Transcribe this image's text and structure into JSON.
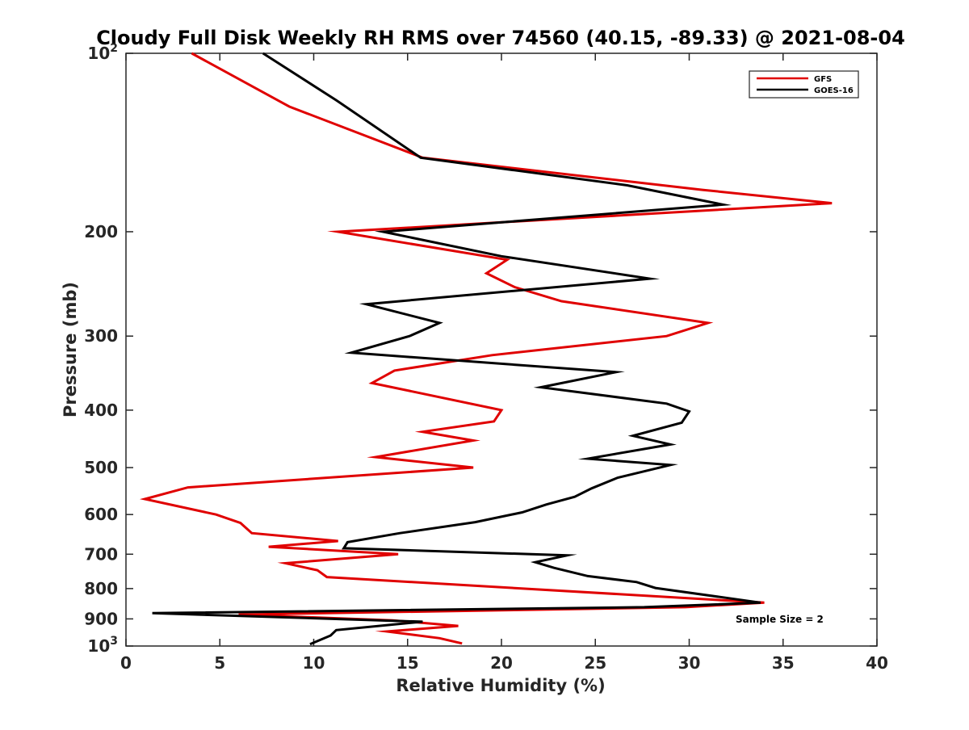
{
  "chart_data": {
    "type": "line",
    "title": "Cloudy Full Disk Weekly RH RMS over 74560 (40.15, -89.33) @ 2021-08-04",
    "xlabel": "Relative Humidity (%)",
    "ylabel": "Pressure (mb)",
    "xlim": [
      0,
      40
    ],
    "ylim": [
      100,
      1000
    ],
    "y_scale": "log",
    "y_reversed": true,
    "grid": false,
    "legend_position": "top-right",
    "x_ticks": [
      "0",
      "5",
      "10",
      "15",
      "20",
      "25",
      "30",
      "35",
      "40"
    ],
    "y_ticks": [
      {
        "value": 100,
        "label": "10",
        "exp": "2"
      },
      {
        "value": 200,
        "label": "200",
        "exp": ""
      },
      {
        "value": 300,
        "label": "300",
        "exp": ""
      },
      {
        "value": 400,
        "label": "400",
        "exp": ""
      },
      {
        "value": 500,
        "label": "500",
        "exp": ""
      },
      {
        "value": 600,
        "label": "600",
        "exp": ""
      },
      {
        "value": 700,
        "label": "700",
        "exp": ""
      },
      {
        "value": 800,
        "label": "800",
        "exp": ""
      },
      {
        "value": 900,
        "label": "900",
        "exp": ""
      },
      {
        "value": 1000,
        "label": "10",
        "exp": "3"
      }
    ],
    "annotation": "Sample Size = 2",
    "series": [
      {
        "name": "GFS",
        "color": "#e00000",
        "points": [
          [
            3.5,
            100
          ],
          [
            8.7,
            123
          ],
          [
            15.8,
            150
          ],
          [
            30.7,
            170
          ],
          [
            37.6,
            179
          ],
          [
            11.3,
            200
          ],
          [
            20.3,
            223
          ],
          [
            19.2,
            235
          ],
          [
            20.7,
            248
          ],
          [
            23.2,
            262
          ],
          [
            31.0,
            285
          ],
          [
            28.8,
            300
          ],
          [
            19.5,
            323
          ],
          [
            14.3,
            343
          ],
          [
            13.1,
            360
          ],
          [
            20.0,
            400
          ],
          [
            19.6,
            418
          ],
          [
            15.8,
            435
          ],
          [
            18.5,
            450
          ],
          [
            13.3,
            480
          ],
          [
            18.5,
            500
          ],
          [
            3.3,
            540
          ],
          [
            1.0,
            565
          ],
          [
            4.8,
            600
          ],
          [
            6.1,
            620
          ],
          [
            6.7,
            645
          ],
          [
            11.3,
            665
          ],
          [
            7.6,
            680
          ],
          [
            14.5,
            700
          ],
          [
            8.5,
            725
          ],
          [
            10.2,
            745
          ],
          [
            10.7,
            765
          ],
          [
            34.0,
            845
          ],
          [
            29.8,
            860
          ],
          [
            6.0,
            885
          ],
          [
            14.2,
            905
          ],
          [
            17.7,
            925
          ],
          [
            13.9,
            945
          ],
          [
            16.7,
            970
          ],
          [
            17.9,
            990
          ]
        ]
      },
      {
        "name": "GOES-16",
        "color": "#000000",
        "points": [
          [
            7.3,
            100
          ],
          [
            11.2,
            120
          ],
          [
            15.7,
            150
          ],
          [
            26.7,
            167
          ],
          [
            31.8,
            180
          ],
          [
            13.7,
            200
          ],
          [
            20.0,
            220
          ],
          [
            27.9,
            240
          ],
          [
            12.8,
            265
          ],
          [
            16.7,
            285
          ],
          [
            15.1,
            300
          ],
          [
            12.0,
            320
          ],
          [
            26.1,
            345
          ],
          [
            22.1,
            366
          ],
          [
            28.8,
            390
          ],
          [
            30.0,
            402
          ],
          [
            29.6,
            420
          ],
          [
            27.0,
            442
          ],
          [
            29.0,
            457
          ],
          [
            24.6,
            483
          ],
          [
            29.0,
            495
          ],
          [
            26.2,
            520
          ],
          [
            24.8,
            542
          ],
          [
            23.9,
            560
          ],
          [
            22.4,
            577
          ],
          [
            21.1,
            595
          ],
          [
            18.6,
            618
          ],
          [
            14.6,
            645
          ],
          [
            11.8,
            668
          ],
          [
            11.6,
            684
          ],
          [
            23.5,
            703
          ],
          [
            21.8,
            722
          ],
          [
            22.8,
            738
          ],
          [
            24.6,
            762
          ],
          [
            27.2,
            780
          ],
          [
            28.2,
            798
          ],
          [
            33.8,
            845
          ],
          [
            27.6,
            860
          ],
          [
            1.4,
            880
          ],
          [
            15.8,
            910
          ],
          [
            11.2,
            940
          ],
          [
            10.9,
            960
          ],
          [
            9.8,
            993
          ]
        ]
      }
    ]
  }
}
